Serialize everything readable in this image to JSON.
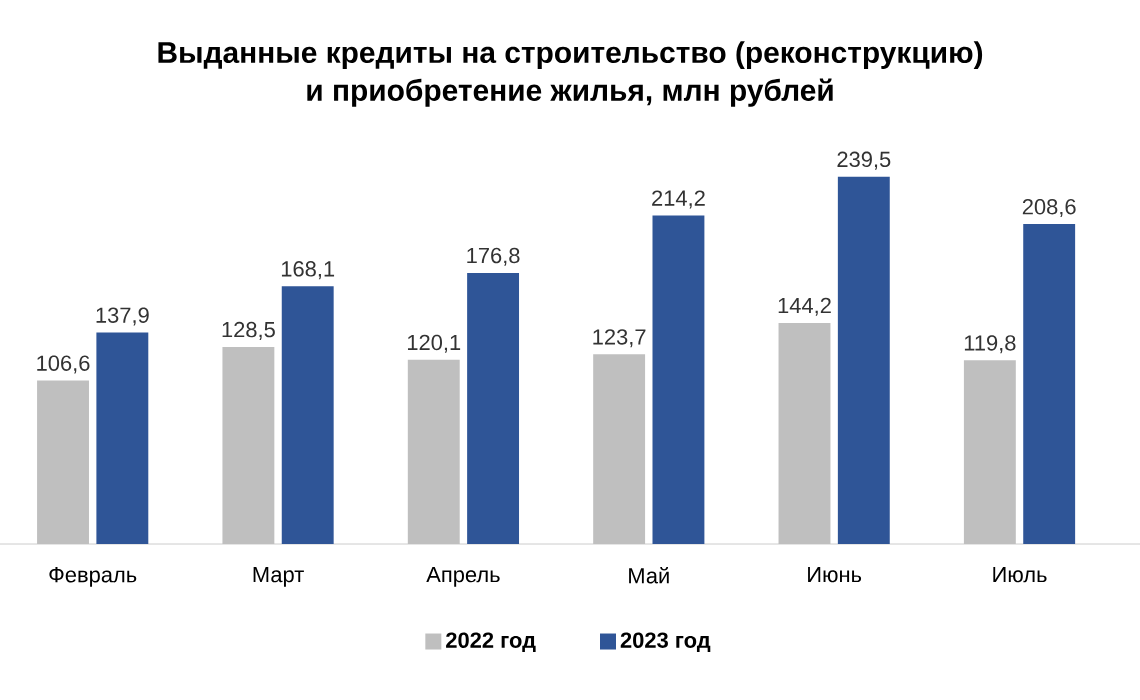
{
  "chart_data": {
    "type": "bar",
    "title": "Выданные кредиты на строительство (реконструкцию)\nи приобретение жилья, млн рублей",
    "categories": [
      "Февраль",
      "Март",
      "Апрель",
      "Май",
      "Июнь",
      "Июль"
    ],
    "series": [
      {
        "name": "2022 год",
        "color": "#bfbfbf",
        "values": [
          106.6,
          128.5,
          120.1,
          123.7,
          144.2,
          119.8
        ],
        "value_labels": [
          "106,6",
          "128,5",
          "120,1",
          "123,7",
          "144,2",
          "119,8"
        ]
      },
      {
        "name": "2023 год",
        "color": "#2f5597",
        "values": [
          137.9,
          168.1,
          176.8,
          214.2,
          239.5,
          208.6
        ],
        "value_labels": [
          "137,9",
          "168,1",
          "176,8",
          "214,2",
          "239,5",
          "208,6"
        ]
      }
    ],
    "legend": "bottom"
  }
}
